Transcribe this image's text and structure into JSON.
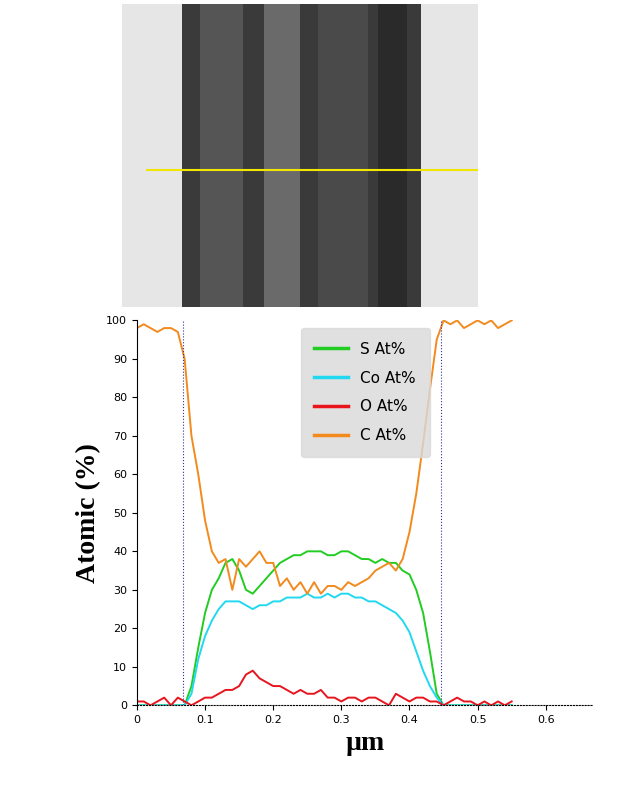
{
  "chart_data": {
    "type": "line",
    "x_label": "µm",
    "y_label": "Atomic (%)",
    "x": [
      0,
      0.01,
      0.02,
      0.03,
      0.04,
      0.05,
      0.06,
      0.07,
      0.08,
      0.09,
      0.1,
      0.11,
      0.12,
      0.13,
      0.14,
      0.15,
      0.16,
      0.17,
      0.18,
      0.19,
      0.2,
      0.21,
      0.22,
      0.23,
      0.24,
      0.25,
      0.26,
      0.27,
      0.28,
      0.29,
      0.3,
      0.31,
      0.32,
      0.33,
      0.34,
      0.35,
      0.36,
      0.37,
      0.38,
      0.39,
      0.4,
      0.41,
      0.42,
      0.43,
      0.44,
      0.45,
      0.46,
      0.47,
      0.48,
      0.49,
      0.5,
      0.51,
      0.52,
      0.53,
      0.54,
      0.55
    ],
    "series": [
      {
        "name": "S At%",
        "color": "#22cc22",
        "values": [
          0,
          0,
          0,
          0,
          0,
          0,
          0,
          0,
          5,
          15,
          24,
          30,
          33,
          37,
          38,
          35,
          30,
          29,
          31,
          33,
          35,
          37,
          38,
          39,
          39,
          40,
          40,
          40,
          39,
          39,
          40,
          40,
          39,
          38,
          38,
          37,
          38,
          37,
          37,
          35,
          34,
          30,
          24,
          14,
          3,
          0,
          0,
          0,
          0,
          0,
          0,
          0,
          0,
          0,
          0,
          0
        ]
      },
      {
        "name": "Co At%",
        "color": "#22d8f0",
        "values": [
          0,
          0,
          0,
          0,
          0,
          0,
          0,
          0,
          3,
          12,
          18,
          22,
          25,
          27,
          27,
          27,
          26,
          25,
          26,
          26,
          27,
          27,
          28,
          28,
          28,
          29,
          28,
          28,
          29,
          28,
          29,
          29,
          28,
          28,
          27,
          27,
          26,
          25,
          24,
          22,
          19,
          14,
          9,
          5,
          2,
          0,
          0,
          0,
          0,
          0,
          0,
          0,
          0,
          0,
          0,
          0
        ]
      },
      {
        "name": "O At%",
        "color": "#e8141e",
        "values": [
          1,
          1,
          0,
          1,
          2,
          0,
          2,
          1,
          0,
          1,
          2,
          2,
          3,
          4,
          4,
          5,
          8,
          9,
          7,
          6,
          5,
          5,
          4,
          3,
          4,
          3,
          3,
          4,
          2,
          2,
          1,
          2,
          2,
          1,
          2,
          2,
          1,
          0,
          3,
          2,
          1,
          2,
          2,
          1,
          1,
          0,
          1,
          2,
          1,
          1,
          0,
          1,
          0,
          1,
          0,
          1
        ]
      },
      {
        "name": "C At%",
        "color": "#f28a1e",
        "values": [
          98,
          99,
          98,
          97,
          98,
          98,
          97,
          90,
          70,
          60,
          48,
          40,
          37,
          38,
          30,
          38,
          36,
          38,
          40,
          37,
          37,
          31,
          33,
          30,
          32,
          29,
          32,
          29,
          31,
          31,
          30,
          32,
          31,
          32,
          33,
          35,
          36,
          37,
          35,
          38,
          45,
          55,
          68,
          82,
          95,
          100,
          99,
          100,
          98,
          99,
          100,
          99,
          100,
          98,
          99,
          100
        ]
      }
    ],
    "boundaries": [
      0.068,
      0.447
    ],
    "xlim": [
      0,
      0.67
    ],
    "xticks": [
      0,
      0.1,
      0.2,
      0.3,
      0.4,
      0.5,
      0.6
    ],
    "ylim": [
      0,
      100
    ],
    "yticks": [
      0,
      10,
      20,
      30,
      40,
      50,
      60,
      70,
      80,
      90,
      100
    ],
    "legend": "upper center",
    "grid": false
  }
}
